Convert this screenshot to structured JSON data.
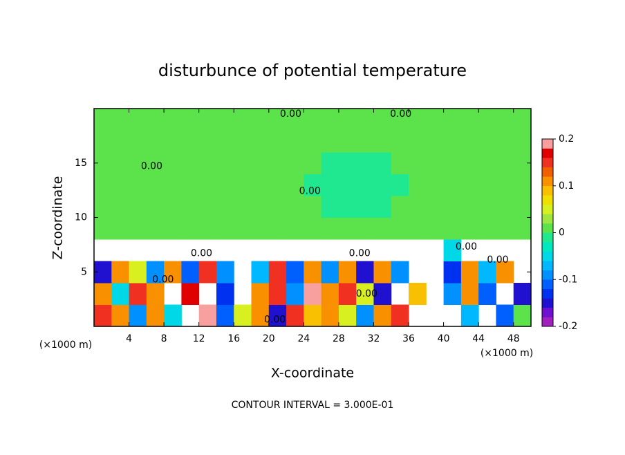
{
  "chart_data": {
    "type": "heatmap",
    "title": "disturbunce of potential temperature",
    "x_label": "X-coordinate",
    "y_label": "Z-coordinate",
    "x_unit": "(×1000 m)",
    "footer": "CONTOUR INTERVAL = 3.000E-01",
    "xlim": [
      0,
      50
    ],
    "ylim": [
      0,
      20
    ],
    "xticks": [
      4,
      8,
      12,
      16,
      20,
      24,
      28,
      32,
      36,
      40,
      44,
      48
    ],
    "yticks": [
      5,
      10,
      15
    ],
    "x": [
      1,
      3,
      5,
      7,
      9,
      11,
      13,
      15,
      17,
      19,
      21,
      23,
      25,
      27,
      29,
      31,
      33,
      35,
      37,
      39,
      41,
      43,
      45,
      47,
      49
    ],
    "y": [
      1,
      3,
      5,
      7,
      9,
      11,
      13,
      15,
      17,
      19
    ],
    "z": [
      [
        0.15,
        0.1,
        -0.1,
        0.12,
        -0.05,
        null,
        0.18,
        -0.12,
        0.05,
        0.1,
        -0.15,
        0.15,
        0.08,
        0.12,
        0.05,
        -0.1,
        0.1,
        0.15,
        null,
        null,
        null,
        -0.08,
        null,
        -0.12,
        0.02
      ],
      [
        0.12,
        -0.05,
        0.14,
        0.1,
        null,
        0.16,
        null,
        -0.14,
        null,
        0.12,
        0.15,
        -0.1,
        0.18,
        0.1,
        0.14,
        0.05,
        -0.15,
        null,
        0.08,
        null,
        -0.1,
        0.1,
        -0.12,
        null,
        -0.15
      ],
      [
        -0.15,
        0.1,
        0.05,
        -0.1,
        0.12,
        -0.12,
        0.15,
        -0.1,
        null,
        -0.08,
        0.14,
        -0.12,
        0.1,
        -0.1,
        0.12,
        -0.15,
        0.1,
        -0.1,
        null,
        null,
        -0.14,
        0.12,
        -0.08,
        0.1,
        null
      ],
      [
        null,
        null,
        null,
        null,
        null,
        null,
        null,
        null,
        null,
        null,
        null,
        null,
        null,
        null,
        null,
        null,
        null,
        null,
        null,
        null,
        -0.05,
        null,
        null,
        null,
        null
      ],
      [
        0.01,
        0.01,
        0.01,
        0.01,
        0.01,
        0.01,
        0.01,
        0.01,
        0.01,
        0.01,
        0.01,
        0.01,
        0.01,
        0.01,
        0.01,
        0.01,
        0.01,
        0.01,
        0.01,
        0.01,
        0.01,
        0.01,
        0.01,
        0.01,
        0.01
      ],
      [
        0.01,
        0.01,
        0.01,
        0.01,
        0.01,
        0.01,
        0.01,
        0.01,
        0.01,
        0.01,
        0.01,
        0.01,
        0.01,
        -0.01,
        -0.01,
        -0.01,
        -0.01,
        0.01,
        0.01,
        0.01,
        0.01,
        0.01,
        0.01,
        0.01,
        0.01
      ],
      [
        0.01,
        0.01,
        0.01,
        0.01,
        0.01,
        0.01,
        0.01,
        0.01,
        0.01,
        0.01,
        0.01,
        0.01,
        -0.01,
        -0.01,
        -0.01,
        -0.01,
        -0.01,
        -0.01,
        0.01,
        0.01,
        0.01,
        0.01,
        0.01,
        0.01,
        0.01
      ],
      [
        0.01,
        0.01,
        0.01,
        0.01,
        0.01,
        0.01,
        0.01,
        0.01,
        0.01,
        0.01,
        0.01,
        0.01,
        0.01,
        -0.01,
        -0.01,
        -0.01,
        -0.01,
        0.01,
        0.01,
        0.01,
        0.01,
        0.01,
        0.01,
        0.01,
        0.01
      ],
      [
        0.01,
        0.01,
        0.01,
        0.01,
        0.01,
        0.01,
        0.01,
        0.01,
        0.01,
        0.01,
        0.01,
        0.01,
        0.01,
        0.01,
        0.01,
        0.01,
        0.01,
        0.01,
        0.01,
        0.01,
        0.01,
        0.01,
        0.01,
        0.01,
        0.01
      ],
      [
        0.01,
        0.01,
        0.01,
        0.01,
        0.01,
        0.01,
        0.01,
        0.01,
        0.01,
        0.01,
        0.01,
        0.01,
        0.01,
        0.01,
        0.01,
        0.01,
        0.01,
        0.01,
        0.01,
        0.01,
        0.01,
        0.01,
        0.01,
        0.01,
        0.01
      ]
    ],
    "clim": [
      -0.2,
      0.2
    ],
    "cticks": [
      0.2,
      0.1,
      0,
      -0.1,
      -0.2
    ],
    "colors": [
      "#a020c0",
      "#7010d0",
      "#2010d0",
      "#0030f0",
      "#0060ff",
      "#0090ff",
      "#00b8ff",
      "#00d8e8",
      "#00e8c0",
      "#20e890",
      "#5ce34c",
      "#a0e640",
      "#d8f020",
      "#f0e000",
      "#f8c000",
      "#f89000",
      "#f06000",
      "#f03020",
      "#e00000",
      "#f8a0a0"
    ],
    "contour_labels": [
      {
        "x": 22.5,
        "y": 19.5,
        "label": "0.00"
      },
      {
        "x": 35.1,
        "y": 19.5,
        "label": "0.00"
      },
      {
        "x": 6.6,
        "y": 14.7,
        "label": "0.00"
      },
      {
        "x": 24.7,
        "y": 12.4,
        "label": "0.00"
      },
      {
        "x": 12.3,
        "y": 6.7,
        "label": "0.00"
      },
      {
        "x": 30.4,
        "y": 6.7,
        "label": "0.00"
      },
      {
        "x": 7.9,
        "y": 4.3,
        "label": "0.00"
      },
      {
        "x": 31.2,
        "y": 3.0,
        "label": "0.00"
      },
      {
        "x": 20.7,
        "y": 0.6,
        "label": "0.00"
      },
      {
        "x": 46.2,
        "y": 6.1,
        "label": "0.00"
      },
      {
        "x": 42.6,
        "y": 7.3,
        "label": "0.00"
      }
    ]
  }
}
